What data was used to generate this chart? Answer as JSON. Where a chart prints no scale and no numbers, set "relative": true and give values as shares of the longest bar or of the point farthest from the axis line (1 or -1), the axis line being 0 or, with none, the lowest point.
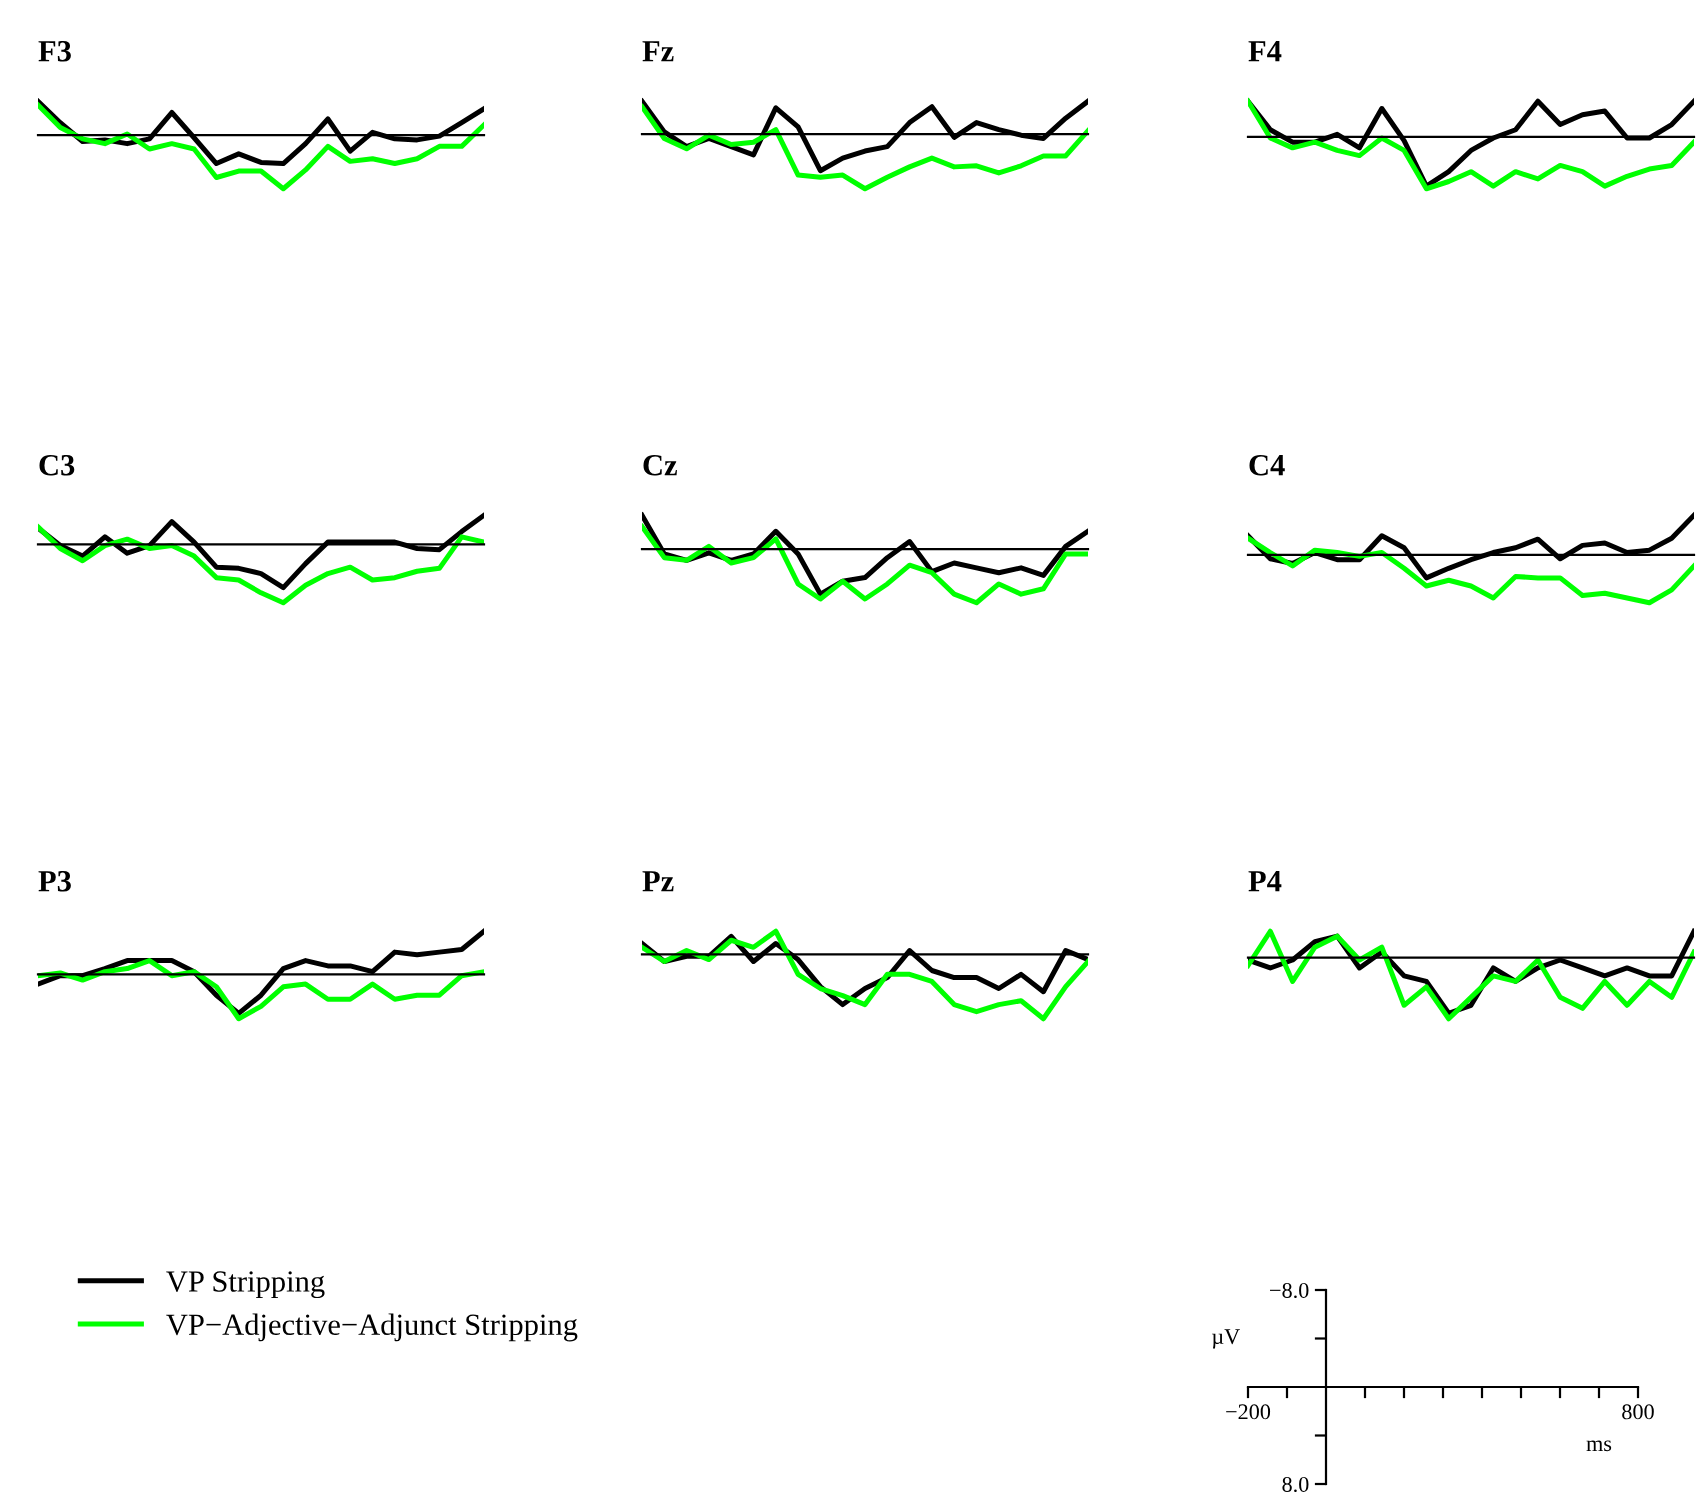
{
  "chart_data": [
    {
      "type": "line",
      "title": "F3",
      "categories": [
        null,
        null,
        null,
        null,
        null,
        null,
        null,
        null,
        null,
        null,
        null,
        null,
        null,
        null,
        null,
        null,
        null,
        null,
        null,
        null,
        null
      ],
      "relative": true,
      "legend": "bottom",
      "series": [
        {
          "name": "VP Stripping",
          "color": "#000000",
          "values": [
            0.63,
            0.23,
            -0.12,
            -0.09,
            -0.16,
            -0.07,
            0.42,
            -0.05,
            -0.53,
            -0.35,
            -0.51,
            -0.53,
            -0.16,
            0.3,
            -0.3,
            0.05,
            -0.07,
            -0.09,
            -0.02,
            0.23,
            0.49
          ]
        },
        {
          "name": "VP−Adjective−Adjunct Stripping",
          "color": "#00ff00",
          "values": [
            0.56,
            0.14,
            -0.07,
            -0.16,
            0.02,
            -0.26,
            -0.16,
            -0.26,
            -0.79,
            -0.67,
            -0.67,
            -1,
            -0.65,
            -0.21,
            -0.49,
            -0.44,
            -0.53,
            -0.44,
            -0.21,
            -0.21,
            0.19
          ]
        }
      ]
    },
    {
      "type": "line",
      "title": "Fz",
      "categories": [
        null,
        null,
        null,
        null,
        null,
        null,
        null,
        null,
        null,
        null,
        null,
        null,
        null,
        null,
        null,
        null,
        null,
        null,
        null,
        null,
        null
      ],
      "relative": true,
      "series": [
        {
          "color": "#000000",
          "values": [
            0.6,
            0.04,
            -0.23,
            -0.08,
            -0.23,
            -0.38,
            0.48,
            0.13,
            -0.67,
            -0.44,
            -0.31,
            -0.23,
            0.21,
            0.5,
            -0.06,
            0.21,
            0.08,
            -0.02,
            -0.08,
            0.29,
            0.6
          ]
        },
        {
          "color": "#00ff00",
          "values": [
            0.5,
            -0.08,
            -0.27,
            -0.02,
            -0.19,
            -0.15,
            0.08,
            -0.75,
            -0.79,
            -0.75,
            -1,
            -0.79,
            -0.6,
            -0.44,
            -0.6,
            -0.58,
            -0.71,
            -0.58,
            -0.4,
            -0.4,
            0.06
          ]
        }
      ]
    },
    {
      "type": "line",
      "title": "F4",
      "categories": [
        null,
        null,
        null,
        null,
        null,
        null,
        null,
        null,
        null,
        null,
        null,
        null,
        null,
        null,
        null,
        null,
        null,
        null,
        null,
        null,
        null
      ],
      "relative": true,
      "series": [
        {
          "color": "#000000",
          "values": [
            0.69,
            0.14,
            -0.1,
            -0.1,
            0.05,
            -0.21,
            0.55,
            -0.07,
            -0.95,
            -0.67,
            -0.26,
            -0.02,
            0.14,
            0.69,
            0.24,
            0.43,
            0.5,
            -0.02,
            -0.02,
            0.24,
            0.69
          ]
        },
        {
          "color": "#00ff00",
          "values": [
            0.69,
            -0.02,
            -0.21,
            -0.1,
            -0.26,
            -0.36,
            -0.02,
            -0.26,
            -1,
            -0.86,
            -0.67,
            -0.95,
            -0.67,
            -0.81,
            -0.55,
            -0.67,
            -0.95,
            -0.76,
            -0.62,
            -0.55,
            -0.1
          ]
        }
      ]
    },
    {
      "type": "line",
      "title": "C3",
      "categories": [
        null,
        null,
        null,
        null,
        null,
        null,
        null,
        null,
        null,
        null,
        null,
        null,
        null,
        null,
        null,
        null,
        null,
        null,
        null,
        null,
        null
      ],
      "relative": true,
      "series": [
        {
          "color": "#000000",
          "values": [
            0.28,
            -0.02,
            -0.2,
            0.13,
            -0.15,
            -0.02,
            0.39,
            0.04,
            -0.39,
            -0.41,
            -0.5,
            -0.74,
            -0.33,
            0.04,
            0.04,
            0.04,
            0.04,
            -0.07,
            -0.09,
            0.22,
            0.5
          ]
        },
        {
          "color": "#00ff00",
          "values": [
            0.3,
            -0.07,
            -0.28,
            -0.02,
            0.09,
            -0.07,
            -0.02,
            -0.2,
            -0.57,
            -0.61,
            -0.83,
            -1,
            -0.7,
            -0.5,
            -0.39,
            -0.61,
            -0.57,
            -0.46,
            -0.41,
            0.13,
            0.04
          ]
        }
      ]
    },
    {
      "type": "line",
      "title": "Cz",
      "categories": [
        null,
        null,
        null,
        null,
        null,
        null,
        null,
        null,
        null,
        null,
        null,
        null,
        null,
        null,
        null,
        null,
        null,
        null,
        null,
        null,
        null
      ],
      "relative": true,
      "series": [
        {
          "color": "#000000",
          "values": [
            0.63,
            -0.09,
            -0.21,
            -0.07,
            -0.21,
            -0.09,
            0.33,
            -0.09,
            -0.84,
            -0.6,
            -0.53,
            -0.16,
            0.14,
            -0.42,
            -0.26,
            -0.35,
            -0.44,
            -0.35,
            -0.49,
            0.05,
            0.33
          ]
        },
        {
          "color": "#00ff00",
          "values": [
            0.42,
            -0.16,
            -0.21,
            0.05,
            -0.26,
            -0.16,
            0.19,
            -0.65,
            -0.93,
            -0.6,
            -0.93,
            -0.65,
            -0.3,
            -0.44,
            -0.84,
            -1,
            -0.65,
            -0.84,
            -0.74,
            -0.09,
            -0.09
          ]
        }
      ]
    },
    {
      "type": "line",
      "title": "C4",
      "categories": [
        null,
        null,
        null,
        null,
        null,
        null,
        null,
        null,
        null,
        null,
        null,
        null,
        null,
        null,
        null,
        null,
        null,
        null,
        null,
        null,
        null
      ],
      "relative": true,
      "series": [
        {
          "color": "#000000",
          "values": [
            0.4,
            -0.08,
            -0.18,
            0.05,
            -0.1,
            -0.1,
            0.4,
            0.15,
            -0.48,
            -0.28,
            -0.1,
            0.05,
            0.15,
            0.33,
            -0.08,
            0.2,
            0.25,
            0.05,
            0.1,
            0.35,
            0.83
          ]
        },
        {
          "color": "#00ff00",
          "values": [
            0.35,
            0.05,
            -0.23,
            0.1,
            0.05,
            -0.03,
            0.05,
            -0.28,
            -0.65,
            -0.53,
            -0.65,
            -0.9,
            -0.45,
            -0.48,
            -0.48,
            -0.85,
            -0.8,
            -0.9,
            -1,
            -0.73,
            -0.23
          ]
        }
      ]
    },
    {
      "type": "line",
      "title": "P3",
      "categories": [
        null,
        null,
        null,
        null,
        null,
        null,
        null,
        null,
        null,
        null,
        null,
        null,
        null,
        null,
        null,
        null,
        null,
        null,
        null,
        null,
        null
      ],
      "relative": true,
      "series": [
        {
          "color": "#000000",
          "values": [
            -0.22,
            -0.03,
            -0.03,
            0.13,
            0.31,
            0.31,
            0.31,
            0.06,
            -0.47,
            -0.88,
            -0.47,
            0.13,
            0.31,
            0.19,
            0.19,
            0.06,
            0.5,
            0.44,
            0.5,
            0.56,
            0.97
          ]
        },
        {
          "color": "#00ff00",
          "values": [
            -0.03,
            0.03,
            -0.13,
            0.06,
            0.13,
            0.31,
            -0.03,
            0.06,
            -0.28,
            -1,
            -0.72,
            -0.28,
            -0.22,
            -0.56,
            -0.56,
            -0.22,
            -0.56,
            -0.47,
            -0.47,
            -0.03,
            0.06
          ]
        }
      ]
    },
    {
      "type": "line",
      "title": "Pz",
      "categories": [
        null,
        null,
        null,
        null,
        null,
        null,
        null,
        null,
        null,
        null,
        null,
        null,
        null,
        null,
        null,
        null,
        null,
        null,
        null,
        null,
        null
      ],
      "relative": true,
      "series": [
        {
          "color": "#000000",
          "values": [
            0.17,
            -0.11,
            -0.03,
            -0.03,
            0.28,
            -0.11,
            0.17,
            -0.08,
            -0.5,
            -0.78,
            -0.53,
            -0.36,
            0.06,
            -0.25,
            -0.36,
            -0.36,
            -0.53,
            -0.31,
            -0.58,
            0.06,
            -0.08
          ]
        },
        {
          "color": "#00ff00",
          "values": [
            0.11,
            -0.11,
            0.06,
            -0.08,
            0.22,
            0.11,
            0.36,
            -0.31,
            -0.53,
            -0.64,
            -0.78,
            -0.31,
            -0.31,
            -0.42,
            -0.78,
            -0.89,
            -0.78,
            -0.72,
            -1,
            -0.5,
            -0.11
          ]
        }
      ]
    },
    {
      "type": "line",
      "title": "P4",
      "categories": [
        null,
        null,
        null,
        null,
        null,
        null,
        null,
        null,
        null,
        null,
        null,
        null,
        null,
        null,
        null,
        null,
        null,
        null,
        null,
        null,
        null
      ],
      "relative": true,
      "series": [
        {
          "color": "#000000",
          "values": [
            -0.04,
            -0.17,
            -0.04,
            0.26,
            0.35,
            -0.17,
            0.09,
            -0.3,
            -0.39,
            -0.91,
            -0.78,
            -0.17,
            -0.39,
            -0.17,
            -0.04,
            -0.17,
            -0.3,
            -0.17,
            -0.3,
            -0.3,
            0.43
          ]
        },
        {
          "color": "#00ff00",
          "values": [
            -0.13,
            0.43,
            -0.39,
            0.17,
            0.35,
            -0.04,
            0.17,
            -0.78,
            -0.48,
            -1,
            -0.65,
            -0.3,
            -0.39,
            -0.04,
            -0.65,
            -0.83,
            -0.39,
            -0.78,
            -0.39,
            -0.65,
            0.09
          ]
        }
      ]
    },
    {
      "type": "line",
      "xlabel": "ms",
      "ylabel": "µV",
      "xlim": [
        -200,
        800
      ],
      "ylim": [
        8,
        -8
      ],
      "xticks": [
        {
          "value": -200,
          "label": "−200"
        },
        {
          "value": -100,
          "label": null
        },
        {
          "value": 100,
          "label": null
        },
        {
          "value": 200,
          "label": null
        },
        {
          "value": 300,
          "label": null
        },
        {
          "value": 400,
          "label": null
        },
        {
          "value": 500,
          "label": null
        },
        {
          "value": 600,
          "label": null
        },
        {
          "value": 700,
          "label": null
        },
        {
          "value": 800,
          "label": "800"
        }
      ],
      "yticks": [
        {
          "value": -8,
          "label": "−8.0"
        },
        {
          "value": -4,
          "label": null
        },
        {
          "value": 4,
          "label": null
        },
        {
          "value": 8,
          "label": "8.0"
        }
      ]
    }
  ]
}
